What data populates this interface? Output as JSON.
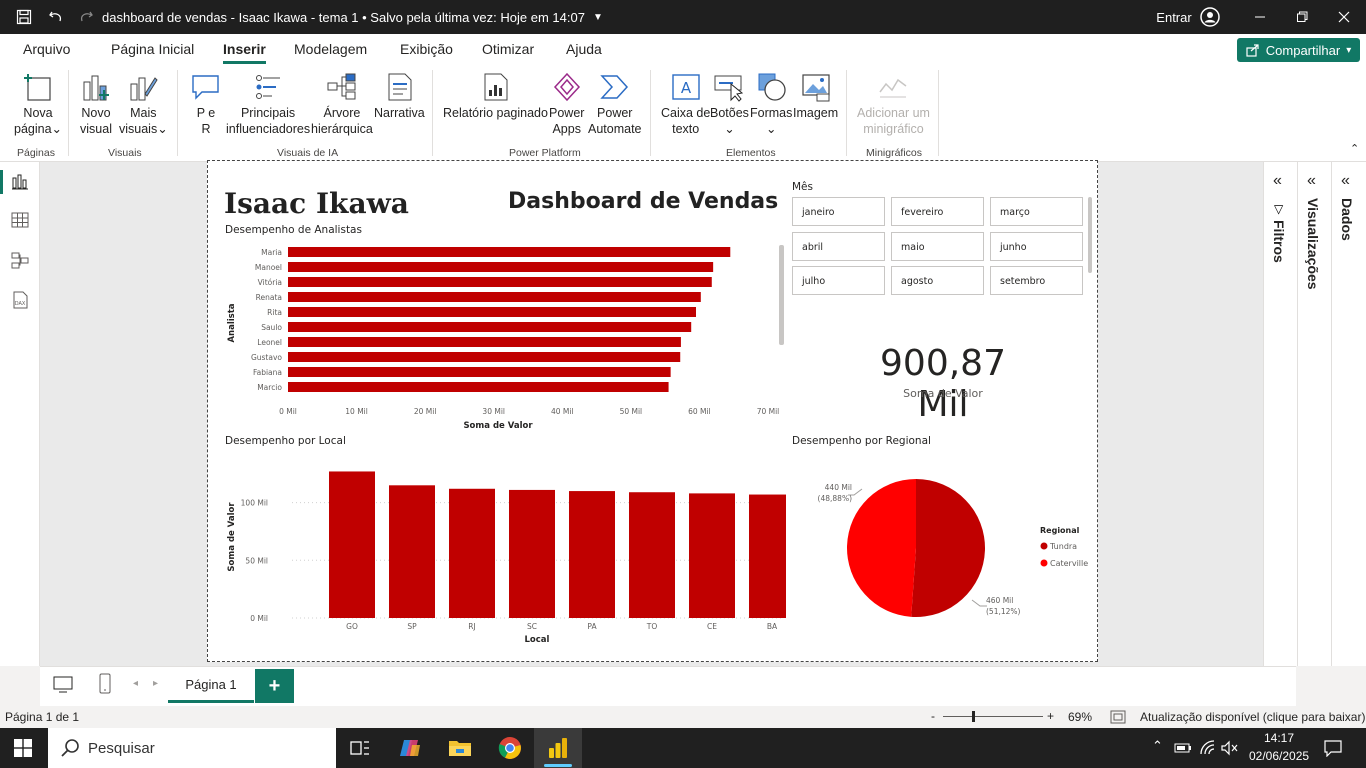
{
  "titlebar": {
    "doc_title": "dashboard de vendas - Isaac Ikawa - tema 1 • Salvo pela última vez: Hoje em 14:07",
    "signin": "Entrar"
  },
  "menu": {
    "tabs": [
      "Arquivo",
      "Página Inicial",
      "Inserir",
      "Modelagem",
      "Exibição",
      "Otimizar",
      "Ajuda"
    ],
    "active": "Inserir",
    "share": "Compartilhar"
  },
  "ribbon": {
    "nova_pagina": [
      "Nova",
      "página"
    ],
    "novo_visual": [
      "Novo",
      "visual"
    ],
    "mais_visuais": [
      "Mais",
      "visuais"
    ],
    "pe_r": [
      "P e",
      "R"
    ],
    "principais": [
      "Principais",
      "influenciadores"
    ],
    "arvore": [
      "Árvore",
      "hierárquica"
    ],
    "narrativa": "Narrativa",
    "relatorio": "Relatório paginado",
    "power_apps": [
      "Power",
      "Apps"
    ],
    "power_automate": [
      "Power",
      "Automate"
    ],
    "caixa_texto": [
      "Caixa de",
      "texto"
    ],
    "botoes": "Botões",
    "formas": "Formas",
    "imagem": "Imagem",
    "adicionar_mini": [
      "Adicionar um",
      "minigráfico"
    ],
    "groups": [
      "Páginas",
      "Visuais",
      "Visuais de IA",
      "Power Platform",
      "Elementos",
      "Minigráficos"
    ]
  },
  "report": {
    "author": "Isaac Ikawa",
    "title": "Dashboard de Vendas",
    "slicer_title": "Mês",
    "months": [
      "janeiro",
      "fevereiro",
      "março",
      "abril",
      "maio",
      "junho",
      "julho",
      "agosto",
      "setembro"
    ],
    "kpi_value": "900,87 Mil",
    "kpi_label": "Soma de Valor"
  },
  "chart_data": [
    {
      "type": "bar",
      "orientation": "horizontal",
      "title": "Desempenho de Analistas",
      "categories": [
        "Maria",
        "Manoel",
        "Vitória",
        "Renata",
        "Rita",
        "Saulo",
        "Leonel",
        "Gustavo",
        "Fabiana",
        "Marcio"
      ],
      "values": [
        64.5,
        62.0,
        61.8,
        60.2,
        59.5,
        58.8,
        57.3,
        57.2,
        55.8,
        55.5
      ],
      "xlabel": "Soma de Valor",
      "ylabel": "Analista",
      "xlim": [
        0,
        70
      ],
      "ticks": [
        "0 Mil",
        "10 Mil",
        "20 Mil",
        "30 Mil",
        "40 Mil",
        "50 Mil",
        "60 Mil",
        "70 Mil"
      ],
      "color": "#c00000"
    },
    {
      "type": "bar",
      "title": "Desempenho por Local",
      "categories": [
        "GO",
        "SP",
        "RJ",
        "SC",
        "PA",
        "TO",
        "CE",
        "BA"
      ],
      "values": [
        127,
        115,
        112,
        111,
        110,
        109,
        108,
        107
      ],
      "xlabel": "Local",
      "ylabel": "Soma de Valor",
      "ylim": [
        0,
        130
      ],
      "ticks": [
        "0 Mil",
        "50 Mil",
        "100 Mil"
      ],
      "color": "#c00000"
    },
    {
      "type": "pie",
      "title": "Desempenho por Regional",
      "legend_title": "Regional",
      "series": [
        {
          "name": "Tundra",
          "value": 460,
          "label": "460 Mil",
          "pct": "(51,12%)",
          "color": "#c00000"
        },
        {
          "name": "Caterville",
          "value": 440,
          "label": "440 Mil",
          "pct": "(48,88%)",
          "color": "#ff0000"
        }
      ]
    }
  ],
  "panes": [
    "Filtros",
    "Visualizações",
    "Dados"
  ],
  "pagebar": {
    "page_tab": "Página 1",
    "add": "+"
  },
  "status": {
    "page": "Página 1 de 1",
    "zoom": "69%",
    "update": "Atualização disponível (clique para baixar)",
    "zoom_minus": "-",
    "zoom_plus": "+"
  },
  "taskbar": {
    "search": "Pesquisar",
    "time": "14:17",
    "date": "02/06/2025"
  }
}
